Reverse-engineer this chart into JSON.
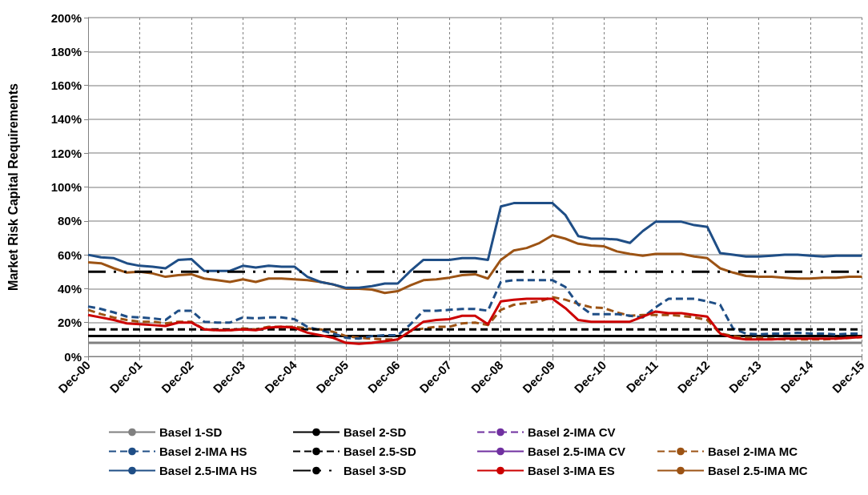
{
  "chart_data": {
    "type": "line",
    "ylabel": "Market Risk Capital Requirements",
    "categories": [
      "Dec-00",
      null,
      null,
      null,
      "Dec-01",
      null,
      null,
      null,
      "Dec-02",
      null,
      null,
      null,
      "Dec-03",
      null,
      null,
      null,
      "Dec-04",
      null,
      null,
      null,
      "Dec-05",
      null,
      null,
      null,
      "Dec-06",
      null,
      null,
      null,
      "Dec-07",
      null,
      null,
      null,
      "Dec-08",
      null,
      null,
      null,
      "Dec-09",
      null,
      null,
      null,
      "Dec-10",
      null,
      null,
      null,
      "Dec-11",
      null,
      null,
      null,
      "Dec-12",
      null,
      null,
      null,
      "Dec-13",
      null,
      null,
      null,
      "Dec-14",
      null,
      null,
      null,
      "Dec-15"
    ],
    "ylim": [
      0,
      200
    ],
    "yticks": [
      {
        "value": 0,
        "label": "0%"
      },
      {
        "value": 20,
        "label": "20%"
      },
      {
        "value": 40,
        "label": "40%"
      },
      {
        "value": 60,
        "label": "60%"
      },
      {
        "value": 80,
        "label": "80%"
      },
      {
        "value": 100,
        "label": "100%"
      },
      {
        "value": 120,
        "label": "120%"
      },
      {
        "value": 140,
        "label": "140%"
      },
      {
        "value": 160,
        "label": "160%"
      },
      {
        "value": 180,
        "label": "180%"
      },
      {
        "value": 200,
        "label": "200%"
      }
    ],
    "grid": true,
    "legend": "bottom",
    "marker": "none",
    "series": [
      {
        "name": "Basel 1-SD",
        "color": "#808080",
        "line_style": "solid",
        "values": [
          8,
          8,
          8,
          8,
          8,
          8,
          8,
          8,
          8,
          8,
          8,
          8,
          8,
          8,
          8,
          8,
          8,
          8,
          8,
          8,
          8,
          8,
          8,
          8,
          8,
          8,
          8,
          8,
          8,
          8,
          8,
          8,
          8,
          8,
          8,
          8,
          8,
          8,
          8,
          8,
          8,
          8,
          8,
          8,
          8,
          8,
          8,
          8,
          8,
          8,
          8,
          8,
          8,
          8,
          8,
          8,
          8,
          8,
          8,
          8,
          8
        ]
      },
      {
        "name": "Basel 2-SD",
        "color": "#000000",
        "line_style": "solid",
        "values": [
          12,
          12,
          12,
          12,
          12,
          12,
          12,
          12,
          12,
          12,
          12,
          12,
          12,
          12,
          12,
          12,
          12,
          12,
          12,
          12,
          12,
          12,
          12,
          12,
          12,
          12,
          12,
          12,
          12,
          12,
          12,
          12,
          12,
          12,
          12,
          12,
          12,
          12,
          12,
          12,
          12,
          12,
          12,
          12,
          12,
          12,
          12,
          12,
          12,
          12,
          12,
          12,
          12,
          12,
          12,
          12,
          12,
          12,
          12,
          12,
          12
        ]
      },
      {
        "name": "Basel 2-IMA CV",
        "color": "#7030a0",
        "line_style": "dashed",
        "values": [
          null,
          null,
          null,
          null,
          null,
          null,
          null,
          null,
          null,
          null,
          null,
          null,
          null,
          null,
          null,
          null,
          null,
          null,
          null,
          null,
          null,
          null,
          null,
          null,
          null,
          null,
          null,
          null,
          null,
          null,
          null,
          null,
          null,
          null,
          null,
          null,
          null,
          null,
          null,
          null,
          null,
          null,
          null,
          null,
          null,
          null,
          null,
          null,
          null,
          null,
          null,
          null,
          null,
          null,
          null,
          null,
          null,
          null,
          null,
          null,
          null
        ]
      },
      {
        "name": "Basel 2-IMA MC",
        "color": "#9c5314",
        "line_style": "dashed",
        "values": [
          27.5,
          25,
          23,
          21.5,
          20.5,
          20.5,
          19.5,
          20.5,
          20.5,
          16,
          15.5,
          15.5,
          16.5,
          16,
          17.5,
          17.5,
          17.5,
          16.5,
          16,
          14.5,
          12,
          11,
          10.5,
          10,
          10,
          15,
          16.5,
          17.5,
          17.5,
          19.5,
          20,
          18.5,
          27.5,
          30.5,
          31.5,
          32.5,
          35,
          33.5,
          31,
          29,
          28.5,
          26,
          24,
          24.5,
          24.5,
          24.5,
          24,
          23,
          21.5,
          13.5,
          12,
          11,
          11,
          10.5,
          10,
          10,
          10,
          10,
          10.5,
          11,
          11.5
        ]
      },
      {
        "name": "Basel 2-IMA HS",
        "color": "#1f4e86",
        "line_style": "dashed",
        "values": [
          29.5,
          28,
          26,
          23.5,
          23,
          22.5,
          21.5,
          27,
          27,
          20.5,
          20,
          20,
          23,
          22.5,
          23,
          23,
          22,
          17.5,
          15.5,
          13.5,
          11,
          10.5,
          12,
          12.5,
          12.5,
          19,
          27,
          27,
          27.5,
          28,
          28,
          27,
          44,
          45,
          45,
          45,
          45,
          41,
          30.5,
          25,
          25,
          25,
          24,
          23,
          29,
          34,
          34,
          34,
          32.5,
          30.5,
          16.5,
          13.5,
          13,
          13.5,
          13.5,
          14,
          13.5,
          13.5,
          13,
          13.5,
          13.5
        ]
      },
      {
        "name": "Basel 2.5-SD",
        "color": "#000000",
        "line_style": "dashed",
        "values": [
          16,
          16,
          16,
          16,
          16,
          16,
          16,
          16,
          16,
          16,
          16,
          16,
          16,
          16,
          16,
          16,
          16,
          16,
          16,
          16,
          16,
          16,
          16,
          16,
          16,
          16,
          16,
          16,
          16,
          16,
          16,
          16,
          16,
          16,
          16,
          16,
          16,
          16,
          16,
          16,
          16,
          16,
          16,
          16,
          16,
          16,
          16,
          16,
          16,
          16,
          16,
          16,
          16,
          16,
          16,
          16,
          16,
          16,
          16,
          16,
          16
        ]
      },
      {
        "name": "Basel 2.5-IMA CV",
        "color": "#7030a0",
        "line_style": "solid",
        "values": [
          null,
          null,
          null,
          null,
          null,
          null,
          null,
          null,
          null,
          null,
          null,
          null,
          null,
          null,
          null,
          null,
          null,
          null,
          null,
          null,
          null,
          null,
          null,
          null,
          null,
          null,
          null,
          null,
          null,
          null,
          null,
          null,
          null,
          null,
          null,
          null,
          null,
          null,
          null,
          null,
          null,
          null,
          null,
          null,
          null,
          null,
          null,
          null,
          null,
          null,
          null,
          null,
          null,
          null,
          null,
          null,
          null,
          null,
          null,
          null,
          null
        ]
      },
      {
        "name": "Basel 2.5-IMA MC",
        "color": "#9c5314",
        "line_style": "solid",
        "values": [
          55.5,
          55,
          52,
          49.5,
          50,
          49,
          47,
          48,
          48.5,
          46,
          45,
          44,
          45.5,
          44,
          46,
          46,
          45.5,
          45,
          44,
          42.5,
          40,
          40,
          39.5,
          37.5,
          38.5,
          42,
          45,
          45.5,
          46.5,
          48,
          48.5,
          46,
          57,
          62.5,
          64,
          67,
          71.5,
          69.5,
          66.5,
          65.5,
          65,
          62,
          60.5,
          59.5,
          60.5,
          60.5,
          60.5,
          59,
          58,
          52,
          49.5,
          47.5,
          47,
          47,
          46.5,
          46,
          46,
          46.5,
          46.5,
          47,
          47
        ]
      },
      {
        "name": "Basel 2.5-IMA HS",
        "color": "#1f4e86",
        "line_style": "solid",
        "values": [
          60,
          58.5,
          58,
          55,
          53.5,
          53,
          52,
          57,
          57.5,
          50.5,
          50.5,
          50.5,
          53.5,
          52.5,
          53.5,
          53,
          53,
          47,
          44,
          42.5,
          40.5,
          40.5,
          41.5,
          43,
          43,
          50.5,
          57,
          57,
          57,
          58,
          58,
          57,
          88.5,
          90.5,
          90.5,
          90.5,
          90.5,
          83.5,
          71,
          69.5,
          69.5,
          69,
          67,
          74,
          79.5,
          79.5,
          79.5,
          77.5,
          76.5,
          61,
          60,
          59,
          59,
          59.5,
          60,
          60,
          59.5,
          59,
          59.5,
          59.5,
          59.5
        ]
      },
      {
        "name": "Basel 3-SD",
        "color": "#000000",
        "line_style": "dashdot",
        "values": [
          50,
          50,
          50,
          50,
          50,
          50,
          50,
          50,
          50,
          50,
          50,
          50,
          50,
          50,
          50,
          50,
          50,
          50,
          50,
          50,
          50,
          50,
          50,
          50,
          50,
          50,
          50,
          50,
          50,
          50,
          50,
          50,
          50,
          50,
          50,
          50,
          50,
          50,
          50,
          50,
          50,
          50,
          50,
          50,
          50,
          50,
          50,
          50,
          50,
          50,
          50,
          50,
          50,
          50,
          50,
          50,
          50,
          50,
          50,
          50,
          50
        ]
      },
      {
        "name": "Basel 3-IMA ES",
        "color": "#cc0000",
        "line_style": "solid",
        "values": [
          24.5,
          23,
          21.5,
          19.5,
          19,
          18.5,
          18,
          20,
          20,
          16,
          15.5,
          15.5,
          16,
          15.5,
          17,
          17.5,
          17,
          14,
          12.5,
          11,
          8,
          7.5,
          8,
          9,
          10,
          15,
          20.5,
          21.5,
          22,
          24,
          24,
          19,
          32.5,
          33.5,
          34,
          34,
          34,
          28.5,
          21.5,
          20.5,
          20.5,
          20.5,
          20.5,
          23.5,
          26.5,
          25.5,
          25.5,
          24.5,
          23.5,
          13.5,
          11,
          10,
          10,
          10,
          10.5,
          10.5,
          10.5,
          10.5,
          10.5,
          11,
          11.5
        ]
      }
    ]
  }
}
